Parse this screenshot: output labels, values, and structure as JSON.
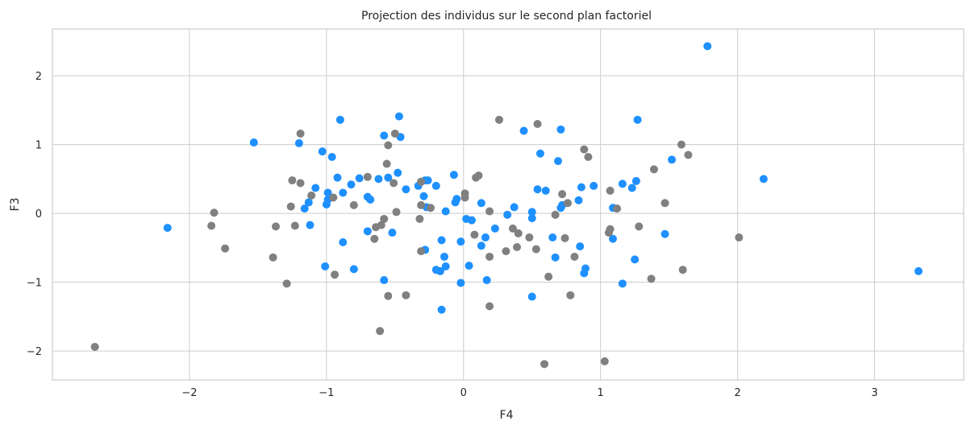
{
  "chart_data": {
    "type": "scatter",
    "title": "Projection des individus sur le second plan factoriel",
    "xlabel": "F4",
    "ylabel": "F3",
    "xlim": [
      -3.0,
      3.65
    ],
    "ylim": [
      -2.42,
      2.68
    ],
    "xticks": [
      -2,
      -1,
      0,
      1,
      2,
      3
    ],
    "xtick_labels": [
      "−2",
      "−1",
      "0",
      "1",
      "2",
      "3"
    ],
    "yticks": [
      -2,
      -1,
      0,
      1,
      2
    ],
    "ytick_labels": [
      "−2",
      "−1",
      "0",
      "1",
      "2"
    ],
    "grid": true,
    "series": [
      {
        "color": "#1e90ff",
        "points": [
          [
            1.78,
            2.43
          ],
          [
            -0.47,
            1.41
          ],
          [
            -0.9,
            1.36
          ],
          [
            1.27,
            1.36
          ],
          [
            0.71,
            1.22
          ],
          [
            0.44,
            1.2
          ],
          [
            -0.58,
            1.13
          ],
          [
            -0.46,
            1.11
          ],
          [
            -1.53,
            1.03
          ],
          [
            -1.2,
            1.02
          ],
          [
            -1.03,
            0.9
          ],
          [
            -0.96,
            0.82
          ],
          [
            0.56,
            0.87
          ],
          [
            1.52,
            0.78
          ],
          [
            0.69,
            0.76
          ],
          [
            -0.48,
            0.59
          ],
          [
            -0.07,
            0.56
          ],
          [
            -0.92,
            0.52
          ],
          [
            -0.76,
            0.51
          ],
          [
            -0.62,
            0.5
          ],
          [
            -0.55,
            0.52
          ],
          [
            -0.28,
            0.48
          ],
          [
            -0.26,
            0.48
          ],
          [
            -0.2,
            0.4
          ],
          [
            -0.33,
            0.4
          ],
          [
            -0.42,
            0.35
          ],
          [
            -0.82,
            0.42
          ],
          [
            0.54,
            0.35
          ],
          [
            0.6,
            0.33
          ],
          [
            0.86,
            0.38
          ],
          [
            0.95,
            0.4
          ],
          [
            1.16,
            0.43
          ],
          [
            1.26,
            0.47
          ],
          [
            1.23,
            0.37
          ],
          [
            2.19,
            0.5
          ],
          [
            -1.08,
            0.37
          ],
          [
            -0.99,
            0.3
          ],
          [
            -0.88,
            0.3
          ],
          [
            -0.7,
            0.24
          ],
          [
            -0.68,
            0.2
          ],
          [
            -0.29,
            0.25
          ],
          [
            -0.05,
            0.21
          ],
          [
            -0.06,
            0.16
          ],
          [
            0.13,
            0.15
          ],
          [
            0.84,
            0.19
          ],
          [
            -1.13,
            0.16
          ],
          [
            -1.0,
            0.13
          ],
          [
            -0.99,
            0.2
          ],
          [
            -1.16,
            0.07
          ],
          [
            -0.27,
            0.09
          ],
          [
            -0.13,
            0.03
          ],
          [
            0.37,
            0.09
          ],
          [
            0.72,
            0.12
          ],
          [
            0.71,
            0.08
          ],
          [
            1.09,
            0.08
          ],
          [
            0.32,
            -0.02
          ],
          [
            0.5,
            0.02
          ],
          [
            0.5,
            -0.07
          ],
          [
            0.02,
            -0.08
          ],
          [
            0.06,
            -0.1
          ],
          [
            0.23,
            -0.22
          ],
          [
            -1.12,
            -0.17
          ],
          [
            -0.7,
            -0.26
          ],
          [
            -0.52,
            -0.28
          ],
          [
            0.16,
            -0.35
          ],
          [
            0.65,
            -0.35
          ],
          [
            1.09,
            -0.37
          ],
          [
            1.47,
            -0.3
          ],
          [
            -0.16,
            -0.39
          ],
          [
            -0.02,
            -0.41
          ],
          [
            -0.88,
            -0.42
          ],
          [
            0.13,
            -0.47
          ],
          [
            0.85,
            -0.48
          ],
          [
            -0.28,
            -0.53
          ],
          [
            -0.14,
            -0.63
          ],
          [
            0.67,
            -0.64
          ],
          [
            1.25,
            -0.67
          ],
          [
            -1.01,
            -0.77
          ],
          [
            -0.8,
            -0.81
          ],
          [
            -0.13,
            -0.77
          ],
          [
            0.04,
            -0.76
          ],
          [
            0.89,
            -0.8
          ],
          [
            0.88,
            -0.87
          ],
          [
            -0.17,
            -0.84
          ],
          [
            -0.2,
            -0.82
          ],
          [
            -0.58,
            -0.97
          ],
          [
            0.17,
            -0.97
          ],
          [
            -0.02,
            -1.01
          ],
          [
            1.16,
            -1.02
          ],
          [
            0.5,
            -1.21
          ],
          [
            -0.16,
            -1.4
          ],
          [
            -2.16,
            -0.21
          ],
          [
            3.32,
            -0.84
          ]
        ]
      },
      {
        "color": "#808080",
        "points": [
          [
            0.26,
            1.36
          ],
          [
            0.54,
            1.3
          ],
          [
            -1.19,
            1.16
          ],
          [
            -0.5,
            1.16
          ],
          [
            -0.55,
            0.99
          ],
          [
            1.59,
            1.0
          ],
          [
            1.64,
            0.85
          ],
          [
            0.88,
            0.93
          ],
          [
            0.91,
            0.82
          ],
          [
            1.39,
            0.64
          ],
          [
            -0.56,
            0.72
          ],
          [
            0.09,
            0.52
          ],
          [
            0.11,
            0.55
          ],
          [
            -1.25,
            0.48
          ],
          [
            -1.19,
            0.44
          ],
          [
            -0.7,
            0.53
          ],
          [
            -0.51,
            0.44
          ],
          [
            -0.31,
            0.46
          ],
          [
            -0.95,
            0.23
          ],
          [
            -1.11,
            0.26
          ],
          [
            0.01,
            0.29
          ],
          [
            0.72,
            0.28
          ],
          [
            1.07,
            0.33
          ],
          [
            1.47,
            0.15
          ],
          [
            0.76,
            0.15
          ],
          [
            -0.8,
            0.12
          ],
          [
            -1.26,
            0.1
          ],
          [
            -0.24,
            0.08
          ],
          [
            -0.31,
            0.12
          ],
          [
            0.01,
            0.23
          ],
          [
            -0.49,
            0.02
          ],
          [
            -0.58,
            -0.08
          ],
          [
            -0.32,
            -0.08
          ],
          [
            -1.82,
            0.01
          ],
          [
            -1.84,
            -0.18
          ],
          [
            -1.74,
            -0.51
          ],
          [
            -1.37,
            -0.19
          ],
          [
            -1.23,
            -0.18
          ],
          [
            -0.64,
            -0.2
          ],
          [
            -0.6,
            -0.17
          ],
          [
            -0.65,
            -0.37
          ],
          [
            0.19,
            0.03
          ],
          [
            0.67,
            -0.02
          ],
          [
            1.12,
            0.07
          ],
          [
            0.08,
            -0.31
          ],
          [
            0.36,
            -0.22
          ],
          [
            0.4,
            -0.29
          ],
          [
            0.48,
            -0.35
          ],
          [
            0.74,
            -0.36
          ],
          [
            1.07,
            -0.23
          ],
          [
            1.06,
            -0.28
          ],
          [
            1.28,
            -0.19
          ],
          [
            2.01,
            -0.35
          ],
          [
            -0.31,
            -0.55
          ],
          [
            0.31,
            -0.55
          ],
          [
            0.39,
            -0.49
          ],
          [
            0.53,
            -0.52
          ],
          [
            0.19,
            -0.63
          ],
          [
            0.81,
            -0.63
          ],
          [
            -1.39,
            -0.64
          ],
          [
            -0.94,
            -0.89
          ],
          [
            -1.29,
            -1.02
          ],
          [
            -0.55,
            -1.2
          ],
          [
            -0.42,
            -1.19
          ],
          [
            0.62,
            -0.92
          ],
          [
            1.37,
            -0.95
          ],
          [
            1.6,
            -0.82
          ],
          [
            0.78,
            -1.19
          ],
          [
            0.19,
            -1.35
          ],
          [
            -0.61,
            -1.71
          ],
          [
            0.59,
            -2.19
          ],
          [
            1.03,
            -2.15
          ],
          [
            -2.69,
            -1.94
          ]
        ]
      }
    ]
  }
}
